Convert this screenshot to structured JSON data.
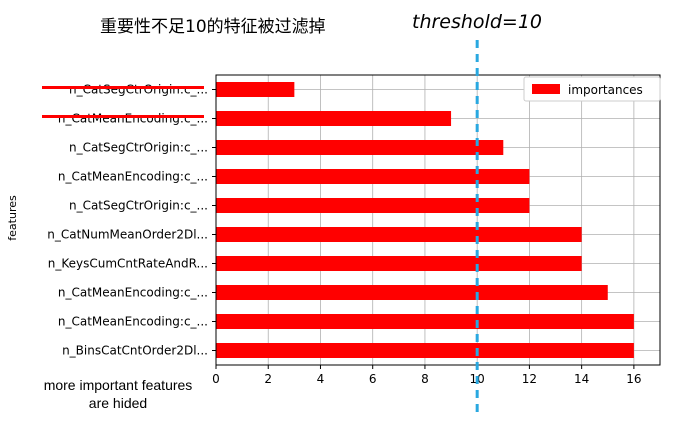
{
  "annotations": {
    "top_note": "重要性不足10的特征被过滤掉",
    "threshold_label": "threshold=10",
    "bottom_note_line1": "more important features",
    "bottom_note_line2": "are hided",
    "threshold_color": "#29a8e0",
    "strike_color": "#ff0000"
  },
  "chart_data": {
    "type": "bar",
    "orientation": "horizontal",
    "categories": [
      "n_CatSegCtrOrigin:c_...",
      "n_CatMeanEncoding:c_...",
      "n_CatSegCtrOrigin:c_...",
      "n_CatMeanEncoding:c_...",
      "n_CatSegCtrOrigin:c_...",
      "n_CatNumMeanOrder2Dl...",
      "n_KeysCumCntRateAndR...",
      "n_CatMeanEncoding:c_...",
      "n_CatMeanEncoding:c_...",
      "n_BinsCatCntOrder2Dl..."
    ],
    "series": [
      {
        "name": "importances",
        "values": [
          3,
          9,
          11,
          12,
          12,
          14,
          14,
          15,
          16,
          16
        ],
        "color": "#ff0000"
      }
    ],
    "struck_categories": [
      0,
      1
    ],
    "threshold": 10,
    "xlabel": "",
    "ylabel": "features",
    "xlim": [
      0,
      17
    ],
    "xticks": [
      0,
      2,
      4,
      6,
      8,
      10,
      12,
      14,
      16
    ],
    "grid": true,
    "legend_position": "top-right"
  }
}
